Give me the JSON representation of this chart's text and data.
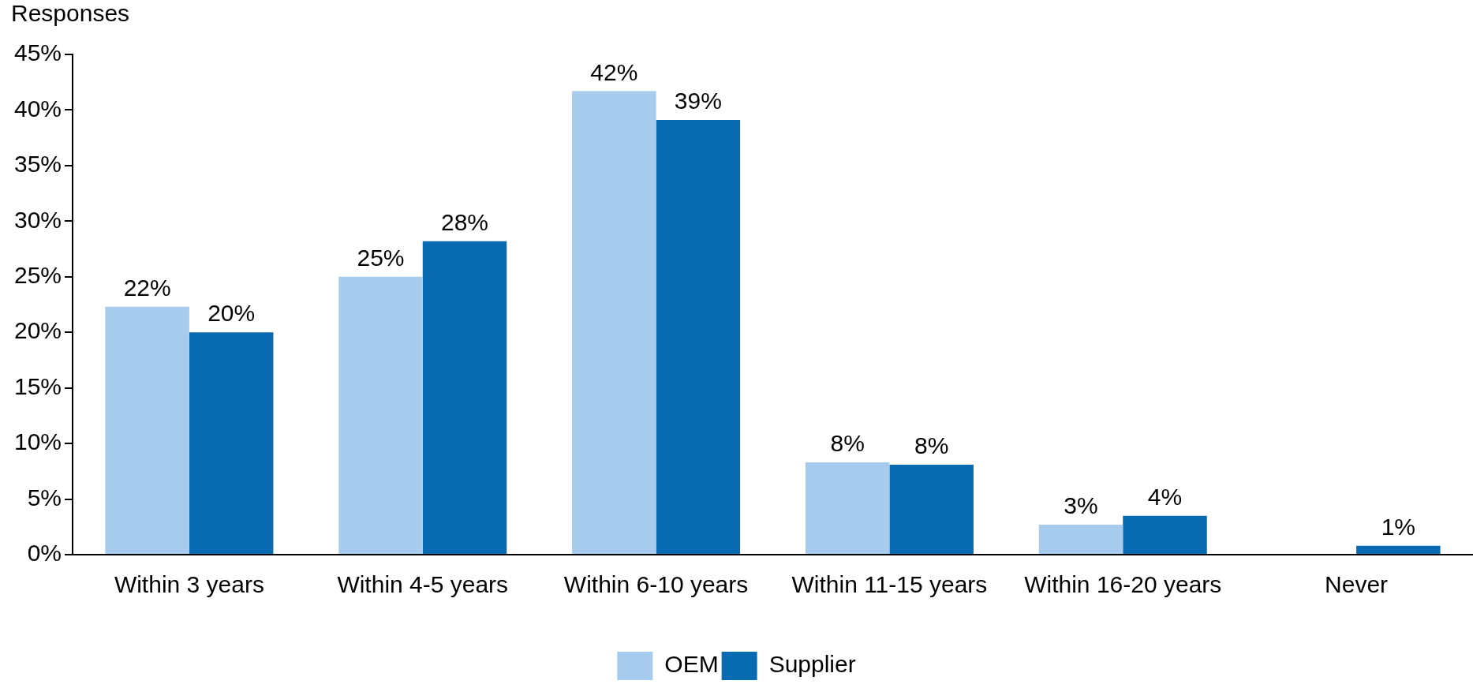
{
  "chart_data": {
    "type": "bar",
    "ylabel": "Responses",
    "categories": [
      "Within 3 years",
      "Within 4-5 years",
      "Within 6-10 years",
      "Within 11-15 years",
      "Within 16-20 years",
      "Never"
    ],
    "series": [
      {
        "name": "OEM",
        "color": "#a7cbec",
        "values": [
          22.3,
          25.0,
          41.7,
          8.3,
          2.7,
          null
        ],
        "value_labels": [
          "22%",
          "25%",
          "42%",
          "8%",
          "3%",
          null
        ]
      },
      {
        "name": "Supplier",
        "color": "#086ab1",
        "values": [
          20.0,
          28.2,
          39.1,
          8.1,
          3.5,
          0.8
        ],
        "value_labels": [
          "20%",
          "28%",
          "39%",
          "8%",
          "4%",
          "1%"
        ]
      }
    ],
    "ylim": [
      0,
      45
    ],
    "yticks": [
      {
        "value": 0,
        "label": "0%"
      },
      {
        "value": 5,
        "label": "5%"
      },
      {
        "value": 10,
        "label": "10%"
      },
      {
        "value": 15,
        "label": "15%"
      },
      {
        "value": 20,
        "label": "20%"
      },
      {
        "value": 25,
        "label": "25%"
      },
      {
        "value": 30,
        "label": "30%"
      },
      {
        "value": 35,
        "label": "35%"
      },
      {
        "value": 40,
        "label": "40%"
      },
      {
        "value": 45,
        "label": "45%"
      }
    ],
    "legend": "bottom"
  }
}
